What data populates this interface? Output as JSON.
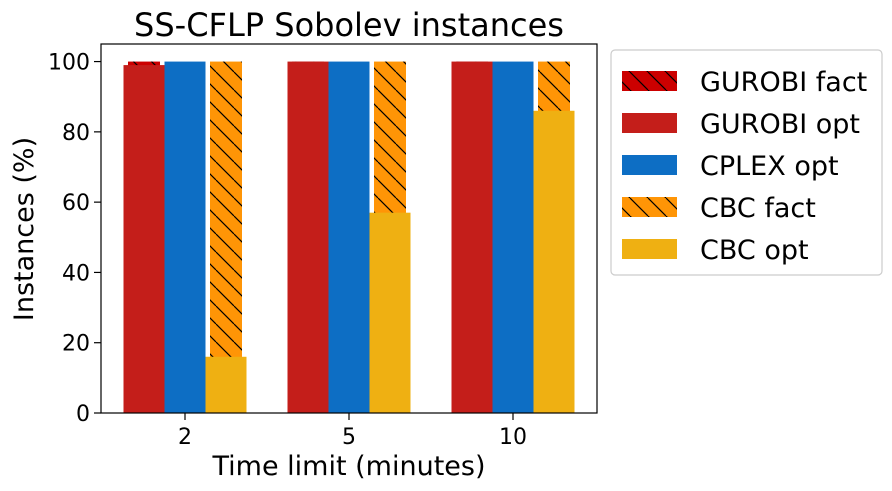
{
  "chart_data": {
    "type": "bar",
    "title": "SS-CFLP Sobolev instances",
    "xlabel": "Time limit (minutes)",
    "ylabel": "Instances (%)",
    "categories": [
      "2",
      "5",
      "10"
    ],
    "ylim": [
      0,
      105
    ],
    "yticks": [
      0,
      20,
      40,
      60,
      80,
      100
    ],
    "grid": false,
    "legend_position": "outside-right",
    "series": [
      {
        "name": "GUROBI fact",
        "values": [
          100,
          100,
          100
        ],
        "color": "#cc0000",
        "hatch": true
      },
      {
        "name": "GUROBI opt",
        "values": [
          99,
          100,
          100
        ],
        "color": "#c41e1a",
        "hatch": false
      },
      {
        "name": "CPLEX opt",
        "values": [
          100,
          100,
          100
        ],
        "color": "#0d6ec4",
        "hatch": false
      },
      {
        "name": "CBC fact",
        "values": [
          100,
          100,
          100
        ],
        "color": "#ff9506",
        "hatch": true
      },
      {
        "name": "CBC opt",
        "values": [
          16,
          57,
          86
        ],
        "color": "#efb012",
        "hatch": false
      }
    ]
  }
}
